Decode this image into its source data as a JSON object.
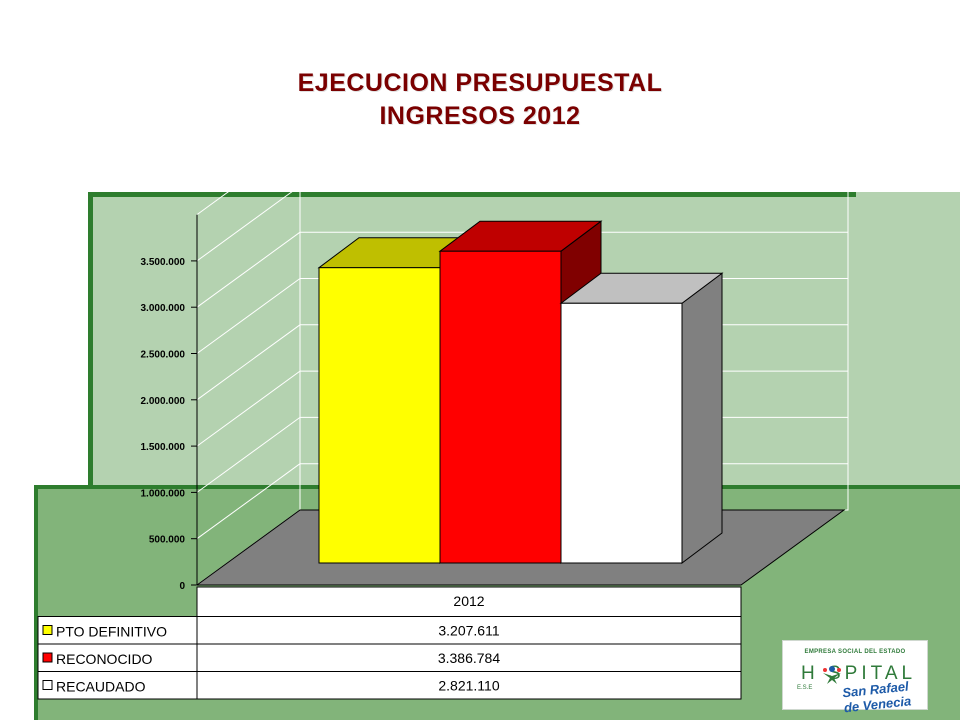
{
  "title": {
    "line1": "EJECUCION PRESUPUESTAL",
    "line2": "INGRESOS 2012"
  },
  "chart_data": {
    "type": "bar",
    "categories": [
      "2012"
    ],
    "series": [
      {
        "name": "PTO DEFINITIVO",
        "values": [
          3207611
        ],
        "label": "3.207.611",
        "color": "#ffff00"
      },
      {
        "name": "RECONOCIDO",
        "values": [
          3386784
        ],
        "label": "3.386.784",
        "color": "#ff0000"
      },
      {
        "name": "RECAUDADO",
        "values": [
          2821110
        ],
        "label": "2.821.110",
        "color": "#ffffff"
      }
    ],
    "yticks": [
      {
        "value": 0,
        "label": "0"
      },
      {
        "value": 500000,
        "label": "500.000"
      },
      {
        "value": 1000000,
        "label": "1.000.000"
      },
      {
        "value": 1500000,
        "label": "1.500.000"
      },
      {
        "value": 2000000,
        "label": "2.000.000"
      },
      {
        "value": 2500000,
        "label": "2.500.000"
      },
      {
        "value": 3000000,
        "label": "3.000.000"
      },
      {
        "value": 3500000,
        "label": "3.500.000"
      }
    ],
    "ylim": [
      0,
      4000000
    ],
    "legend": "data-table-bottom",
    "grid": true
  },
  "logo": {
    "top_text": "EMPRESA SOCIAL DEL ESTADO",
    "word": "H SPITAL",
    "prefix": "E.S.E",
    "name": "San Rafael de Venecia"
  }
}
